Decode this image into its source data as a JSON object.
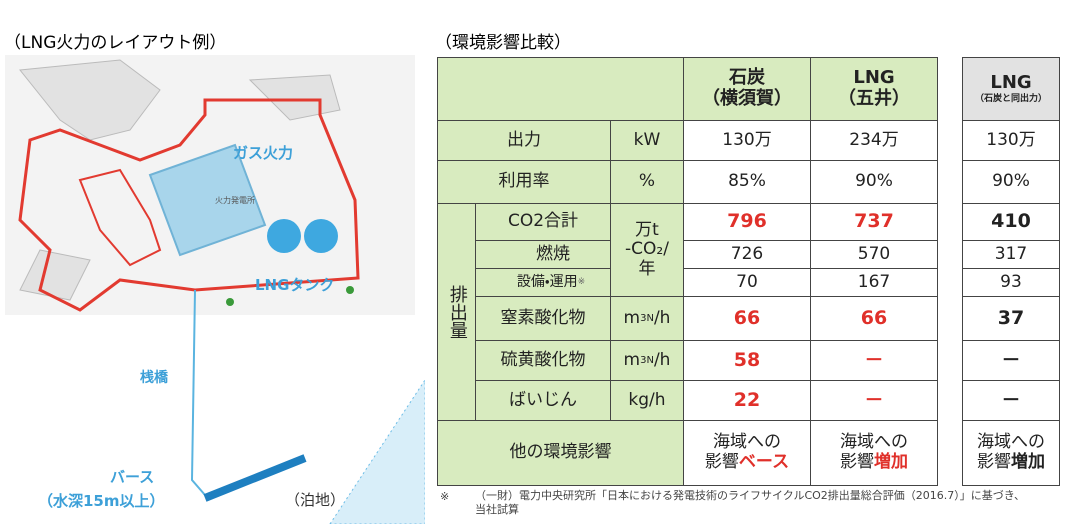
{
  "left": {
    "title": "（LNG火力のレイアウト例）",
    "labels": {
      "gas": "ガス火力",
      "plant": "火力発電所",
      "tank": "LNGタンク",
      "pier": "桟橋",
      "berth": "バース",
      "depth": "（水深15m以上）",
      "anchorage": "（泊地）"
    }
  },
  "right": {
    "title": "（環境影響比較）",
    "columns": [
      {
        "name": "石炭",
        "sub": "（横須賀）"
      },
      {
        "name": "LNG",
        "sub": "（五井）"
      },
      {
        "name": "LNG",
        "sub": "（石炭と同出力）"
      }
    ],
    "group": "排出量",
    "co2_unit": [
      "万t",
      "-CO₂/",
      "年"
    ],
    "rows": [
      {
        "label": "出力",
        "unit": "kW",
        "values": [
          "130万",
          "234万",
          "130万"
        ]
      },
      {
        "label": "利用率",
        "unit": "%",
        "values": [
          "85%",
          "90%",
          "90%"
        ]
      },
      {
        "label": "CO2合計",
        "values": [
          796,
          737,
          410
        ]
      },
      {
        "label": "燃焼",
        "values": [
          726,
          570,
          317
        ]
      },
      {
        "label": "設備・運用",
        "note": "※",
        "values": [
          70,
          167,
          93
        ]
      },
      {
        "label": "窒素酸化物",
        "unit": {
          "base": "m",
          "sup": "3",
          "sub": "N",
          "tail": "/h"
        },
        "values": [
          66,
          66,
          37
        ]
      },
      {
        "label": "硫黄酸化物",
        "unit": {
          "base": "m",
          "sup": "3",
          "sub": "N",
          "tail": "/h"
        },
        "values": [
          58,
          "－",
          "－"
        ]
      },
      {
        "label": "ばいじん",
        "unit": "kg/h",
        "values": [
          22,
          "－",
          "－"
        ]
      },
      {
        "label": "他の環境影響",
        "values": [
          {
            "line1": "海域への",
            "line2": "影響",
            "emphasis": "ベース"
          },
          {
            "line1": "海域への",
            "line2": "影響",
            "emphasis": "増加"
          },
          {
            "line1": "海域への",
            "line2": "影響",
            "emphasis": "増加"
          }
        ]
      }
    ],
    "footnote_mark": "※",
    "footnote": "（一財）電力中央研究所「日本における発電技術のライフサイクルCO2排出量総合評価（2016.7）」に基づき、当社試算"
  }
}
